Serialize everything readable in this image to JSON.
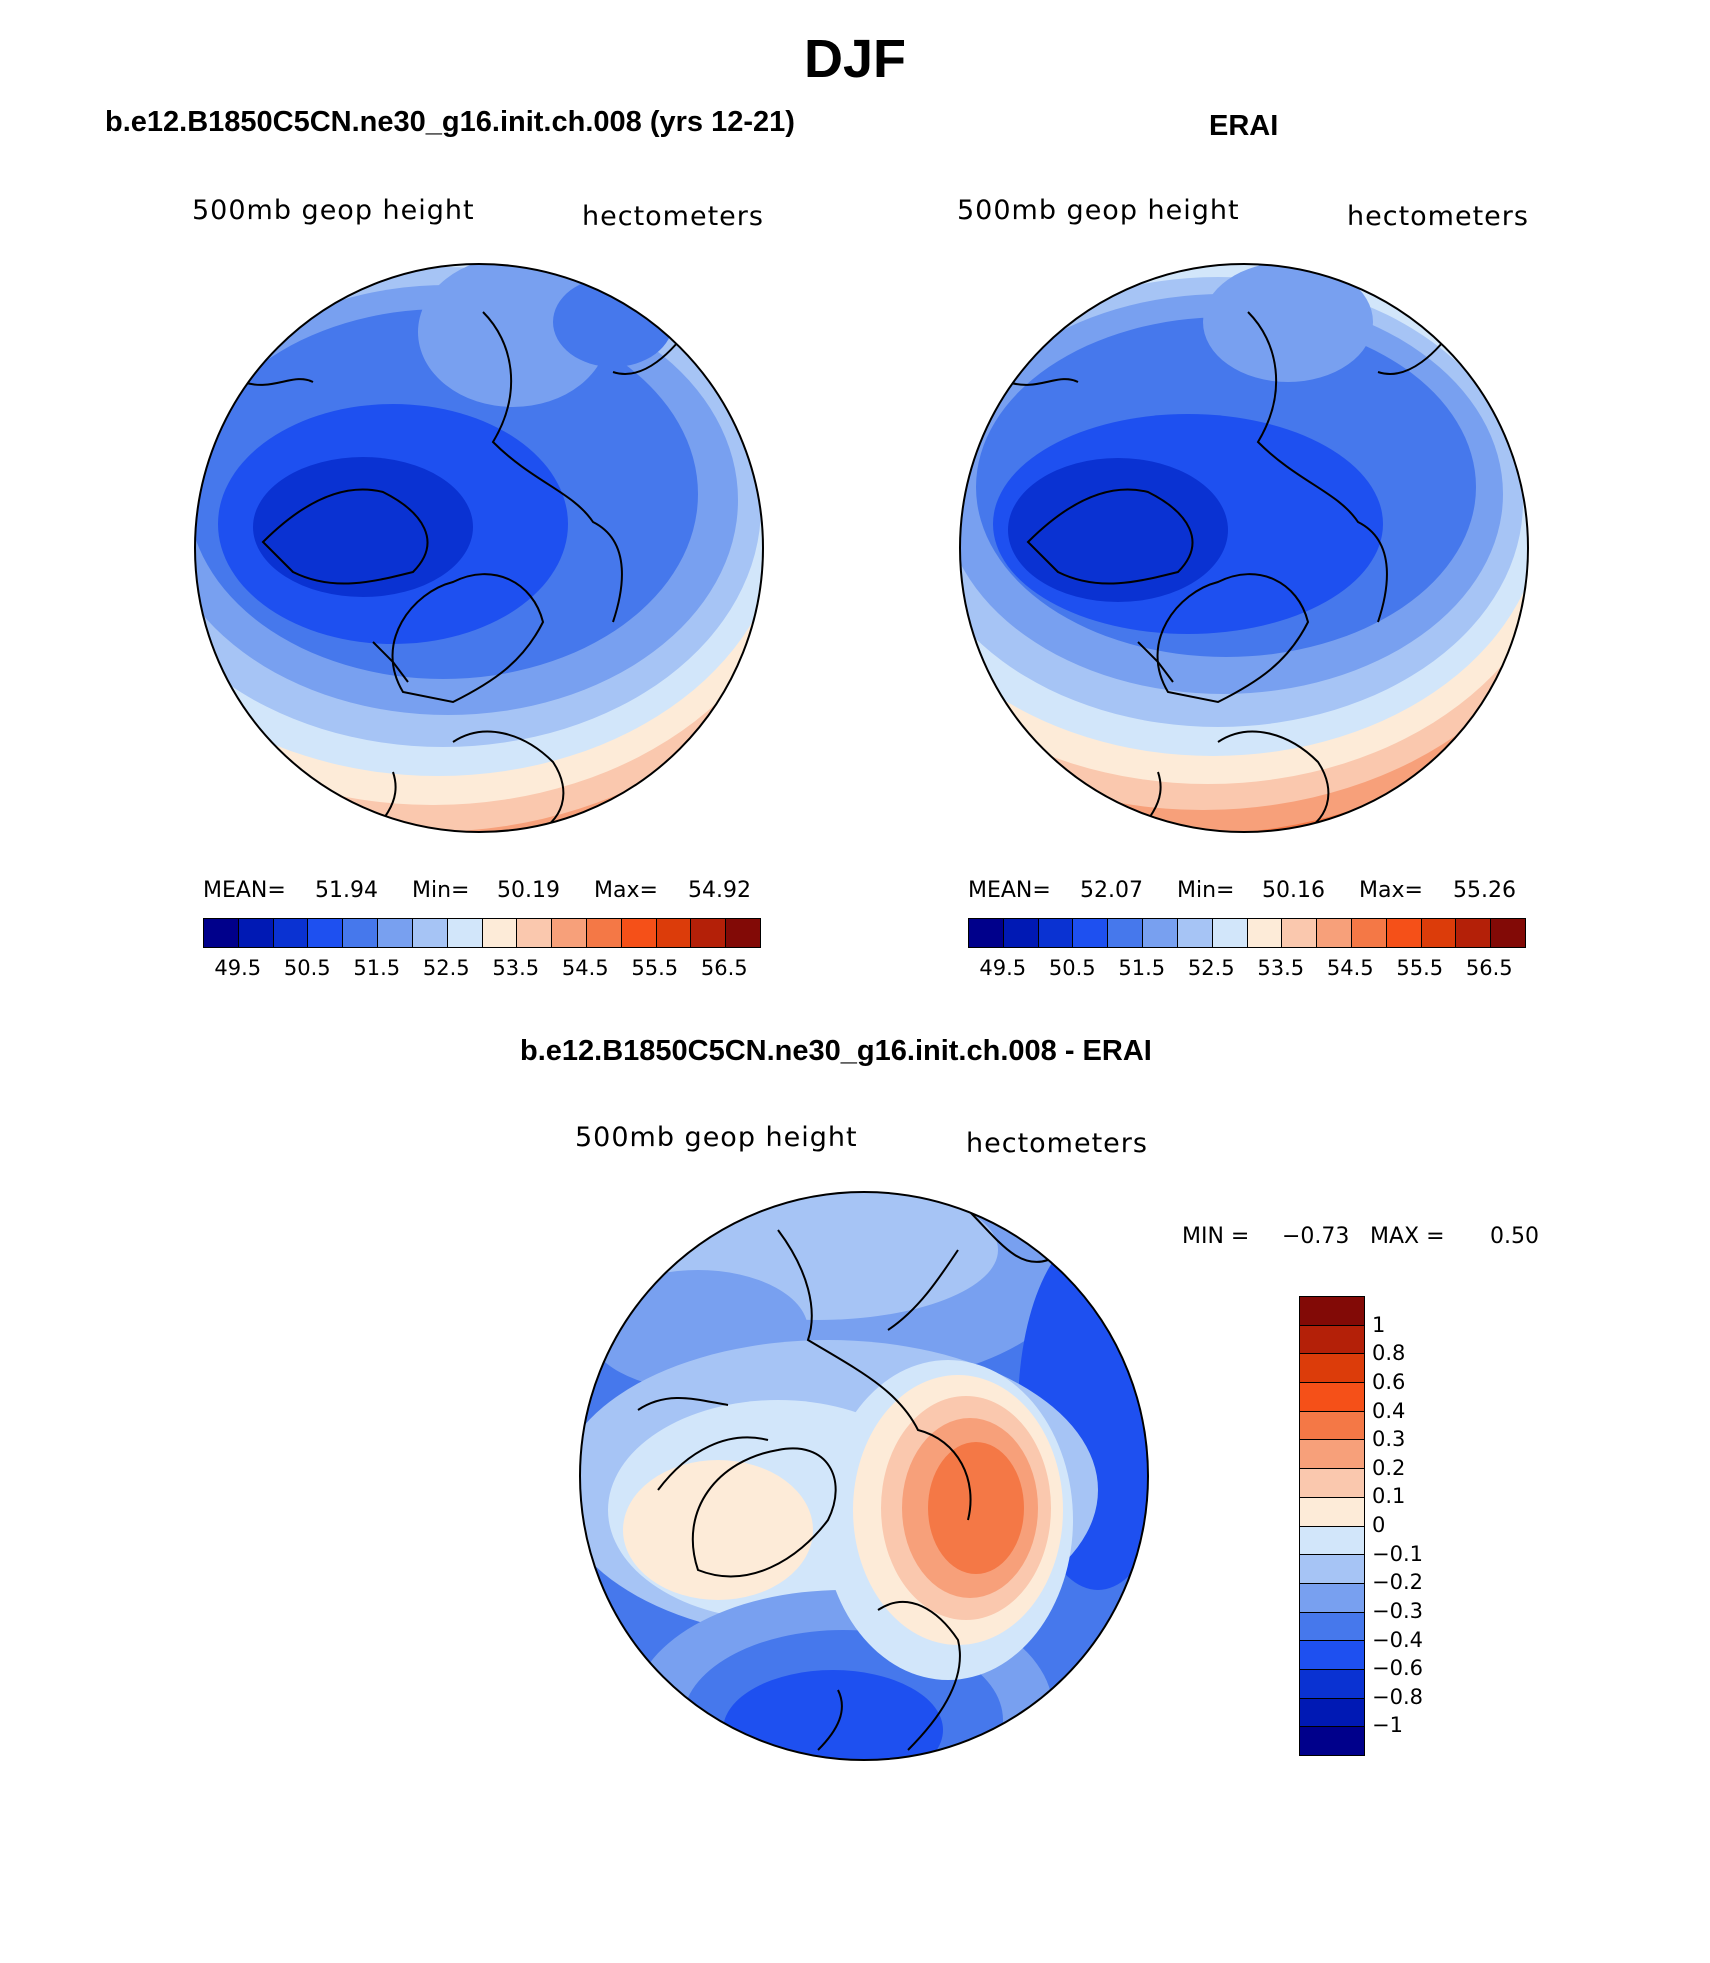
{
  "title": "DJF",
  "panels": [
    {
      "id": "model",
      "title": "b.e12.B1850C5CN.ne30_g16.init.ch.008 (yrs 12-21)",
      "subtitle_left": "500mb  geop  height",
      "subtitle_right": "hectometers",
      "stats": {
        "mean_label": "MEAN=",
        "mean": "51.94",
        "min_label": "Min=",
        "min": "50.19",
        "max_label": "Max=",
        "max": "54.92"
      }
    },
    {
      "id": "obs",
      "title": "ERAI",
      "subtitle_left": "500mb  geop  height",
      "subtitle_right": "hectometers",
      "stats": {
        "mean_label": "MEAN=",
        "mean": "52.07",
        "min_label": "Min=",
        "min": "50.16",
        "max_label": "Max=",
        "max": "55.26"
      }
    },
    {
      "id": "diff",
      "title": "b.e12.B1850C5CN.ne30_g16.init.ch.008 - ERAI",
      "subtitle_left": "500mb  geop  height",
      "subtitle_right": "hectometers",
      "stats": {
        "min_label": "MIN =",
        "min": "−0.73",
        "max_label": "MAX =",
        "max": "0.50"
      }
    }
  ],
  "colorbar_heights": {
    "colors": [
      "#00008b",
      "#0019b4",
      "#0a32d2",
      "#1e50f0",
      "#4678ec",
      "#78a0f0",
      "#a6c4f5",
      "#d2e6fa",
      "#fdebd8",
      "#fac8ae",
      "#f7a07a",
      "#f47846",
      "#f55018",
      "#dc3c0a",
      "#b42008",
      "#820a06"
    ],
    "labels": [
      "49.5",
      "50.5",
      "51.5",
      "52.5",
      "53.5",
      "54.5",
      "55.5",
      "56.5"
    ]
  },
  "colorbar_diff": {
    "colors": [
      "#00008b",
      "#0019b4",
      "#0a32d2",
      "#1e50f0",
      "#4678ec",
      "#78a0f0",
      "#a6c4f5",
      "#d2e6fa",
      "#fdebd8",
      "#fac8ae",
      "#f7a07a",
      "#f47846",
      "#f55018",
      "#dc3c0a",
      "#b42008",
      "#820a06"
    ],
    "labels": [
      "1",
      "0.8",
      "0.6",
      "0.4",
      "0.3",
      "0.2",
      "0.1",
      "0",
      "−0.1",
      "−0.2",
      "−0.3",
      "−0.4",
      "−0.6",
      "−0.8",
      "−1"
    ]
  }
}
